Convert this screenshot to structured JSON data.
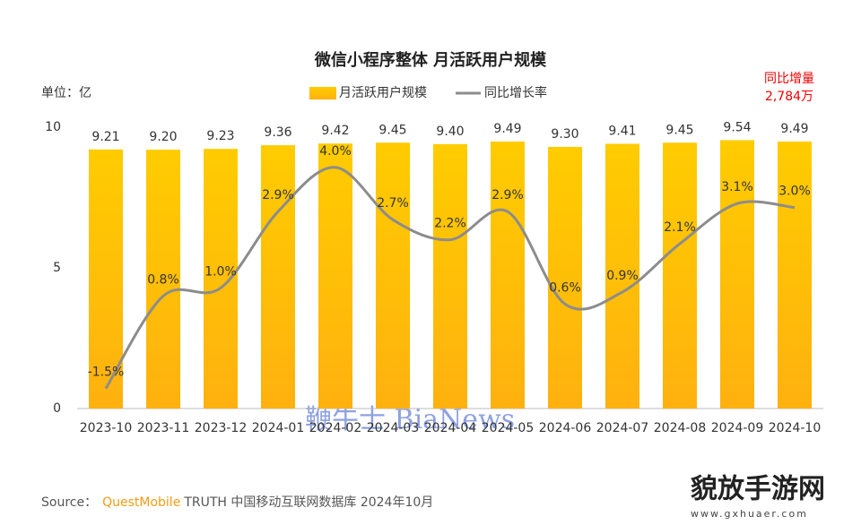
{
  "chart_data": {
    "type": "bar-line",
    "title": "微信小程序整体 月活跃用户规模",
    "unit_label": "单位：亿",
    "annotation_title": "同比增量",
    "annotation_value": "2,784万",
    "categories": [
      "2023-10",
      "2023-11",
      "2023-12",
      "2024-01",
      "2024-02",
      "2024-03",
      "2024-04",
      "2024-05",
      "2024-06",
      "2024-07",
      "2024-08",
      "2024-09",
      "2024-10"
    ],
    "series": [
      {
        "name": "月活跃用户规模",
        "type": "bar",
        "color": "#FFC000",
        "values": [
          9.21,
          9.2,
          9.23,
          9.36,
          9.42,
          9.45,
          9.4,
          9.49,
          9.3,
          9.41,
          9.45,
          9.54,
          9.49
        ],
        "value_labels": [
          "9.21",
          "9.20",
          "9.23",
          "9.36",
          "9.42",
          "9.45",
          "9.40",
          "9.49",
          "9.30",
          "9.41",
          "9.45",
          "9.54",
          "9.49"
        ]
      },
      {
        "name": "同比增长率",
        "type": "line",
        "axis": "y2",
        "color": "#8c8c8c",
        "values": [
          -1.5,
          0.8,
          1.0,
          2.9,
          4.0,
          2.7,
          2.2,
          2.9,
          0.6,
          0.9,
          2.1,
          3.1,
          3.0
        ],
        "value_labels": [
          "-1.5%",
          "0.8%",
          "1.0%",
          "2.9%",
          "4.0%",
          "2.7%",
          "2.2%",
          "2.9%",
          "0.6%",
          "0.9%",
          "2.1%",
          "3.1%",
          "3.0%"
        ]
      }
    ],
    "ylim": [
      0,
      10
    ],
    "yticks": [
      0,
      5,
      10
    ],
    "y2lim": [
      -2,
      5
    ],
    "legend": "top",
    "source_prefix": "Source：",
    "source_brand": "QuestMobile",
    "source_rest": "TRUTH 中国移动互联网数据库 2024年10月",
    "watermarks": [
      "鞭牛士 BiaNews",
      "貌放手游网",
      "www.gxhuaer.com"
    ]
  }
}
